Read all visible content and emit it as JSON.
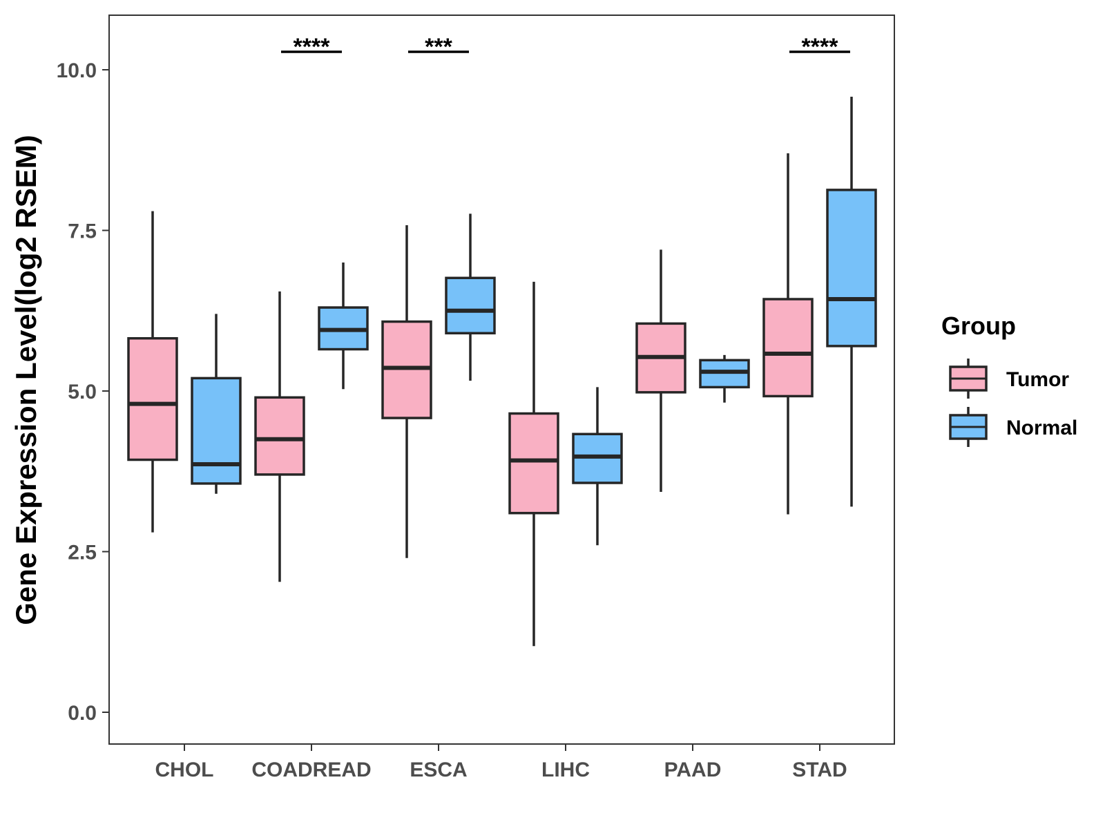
{
  "chart_data": {
    "type": "box",
    "title": "",
    "xlabel": "",
    "ylabel": "Gene Expression Level(log2 RSEM)",
    "ylim": [
      -0.5,
      10.85
    ],
    "yticks": [
      0.0,
      2.5,
      5.0,
      7.5,
      10.0
    ],
    "ytick_labels": [
      "0.0",
      "2.5",
      "5.0",
      "7.5",
      "10.0"
    ],
    "categories": [
      "CHOL",
      "COADREAD",
      "ESCA",
      "LIHC",
      "PAAD",
      "STAD"
    ],
    "legend": {
      "title": "Group",
      "position": "right",
      "entries": [
        {
          "name": "Tumor",
          "color": "#f9b0c3"
        },
        {
          "name": "Normal",
          "color": "#77c1f9"
        }
      ]
    },
    "series": [
      {
        "name": "Tumor",
        "color": "#f9b0c3",
        "boxes": [
          {
            "min": 2.8,
            "q1": 3.93,
            "median": 4.8,
            "q3": 5.82,
            "max": 7.8
          },
          {
            "min": 2.03,
            "q1": 3.7,
            "median": 4.25,
            "q3": 4.9,
            "max": 6.55
          },
          {
            "min": 2.4,
            "q1": 4.58,
            "median": 5.36,
            "q3": 6.08,
            "max": 7.58
          },
          {
            "min": 1.03,
            "q1": 3.1,
            "median": 3.92,
            "q3": 4.65,
            "max": 6.7
          },
          {
            "min": 3.43,
            "q1": 4.98,
            "median": 5.53,
            "q3": 6.05,
            "max": 7.2
          },
          {
            "min": 3.08,
            "q1": 4.92,
            "median": 5.58,
            "q3": 6.43,
            "max": 8.7
          }
        ]
      },
      {
        "name": "Normal",
        "color": "#77c1f9",
        "boxes": [
          {
            "min": 3.4,
            "q1": 3.56,
            "median": 3.86,
            "q3": 5.2,
            "max": 6.2
          },
          {
            "min": 5.03,
            "q1": 5.65,
            "median": 5.95,
            "q3": 6.3,
            "max": 7.0
          },
          {
            "min": 5.16,
            "q1": 5.9,
            "median": 6.25,
            "q3": 6.76,
            "max": 7.76
          },
          {
            "min": 2.6,
            "q1": 3.57,
            "median": 3.98,
            "q3": 4.33,
            "max": 5.06
          },
          {
            "min": 4.82,
            "q1": 5.06,
            "median": 5.3,
            "q3": 5.48,
            "max": 5.56
          },
          {
            "min": 3.2,
            "q1": 5.7,
            "median": 6.43,
            "q3": 8.13,
            "max": 9.58
          }
        ]
      }
    ],
    "significance": [
      {
        "category": "COADREAD",
        "label": "****"
      },
      {
        "category": "ESCA",
        "label": "***"
      },
      {
        "category": "STAD",
        "label": "****"
      }
    ],
    "grid": false
  }
}
